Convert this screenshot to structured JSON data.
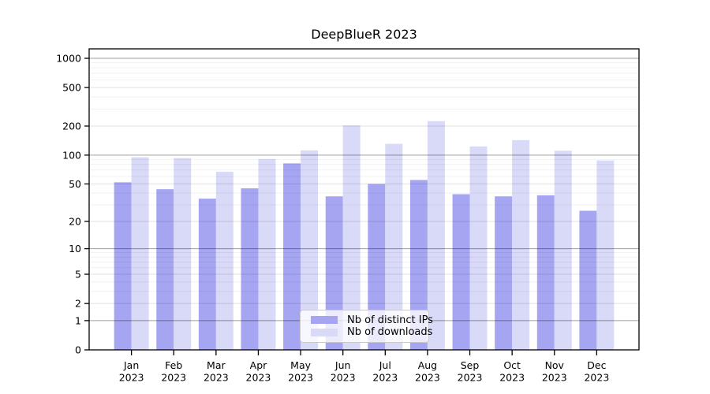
{
  "chart_data": {
    "type": "bar",
    "title": "DeepBlueR 2023",
    "categories": [
      {
        "month": "Jan",
        "year": "2023"
      },
      {
        "month": "Feb",
        "year": "2023"
      },
      {
        "month": "Mar",
        "year": "2023"
      },
      {
        "month": "Apr",
        "year": "2023"
      },
      {
        "month": "May",
        "year": "2023"
      },
      {
        "month": "Jun",
        "year": "2023"
      },
      {
        "month": "Jul",
        "year": "2023"
      },
      {
        "month": "Aug",
        "year": "2023"
      },
      {
        "month": "Sep",
        "year": "2023"
      },
      {
        "month": "Oct",
        "year": "2023"
      },
      {
        "month": "Nov",
        "year": "2023"
      },
      {
        "month": "Dec",
        "year": "2023"
      }
    ],
    "series": [
      {
        "name": "Nb of distinct IPs",
        "color": "#a5a5f1",
        "values": [
          52,
          44,
          35,
          45,
          82,
          37,
          50,
          55,
          39,
          37,
          38,
          26
        ]
      },
      {
        "name": "Nb of downloads",
        "color": "#d9d9f8",
        "values": [
          95,
          93,
          67,
          91,
          112,
          203,
          131,
          225,
          123,
          143,
          111,
          88
        ]
      }
    ],
    "y_axis": {
      "scale": "log1p",
      "ticks": [
        0,
        1,
        2,
        5,
        10,
        20,
        50,
        100,
        200,
        500,
        1000
      ],
      "ylim": [
        0,
        1260
      ],
      "grid": true
    },
    "x_axis": {
      "tick_label_lines": 2
    },
    "grid_colors": {
      "major": "rgba(0,0,0,0.38)",
      "labeled": "rgba(0,0,0,0.12)",
      "minor": "rgba(0,0,0,0.055)"
    },
    "axis_color": "#000000",
    "legend": {
      "position": "bottom-center"
    }
  }
}
